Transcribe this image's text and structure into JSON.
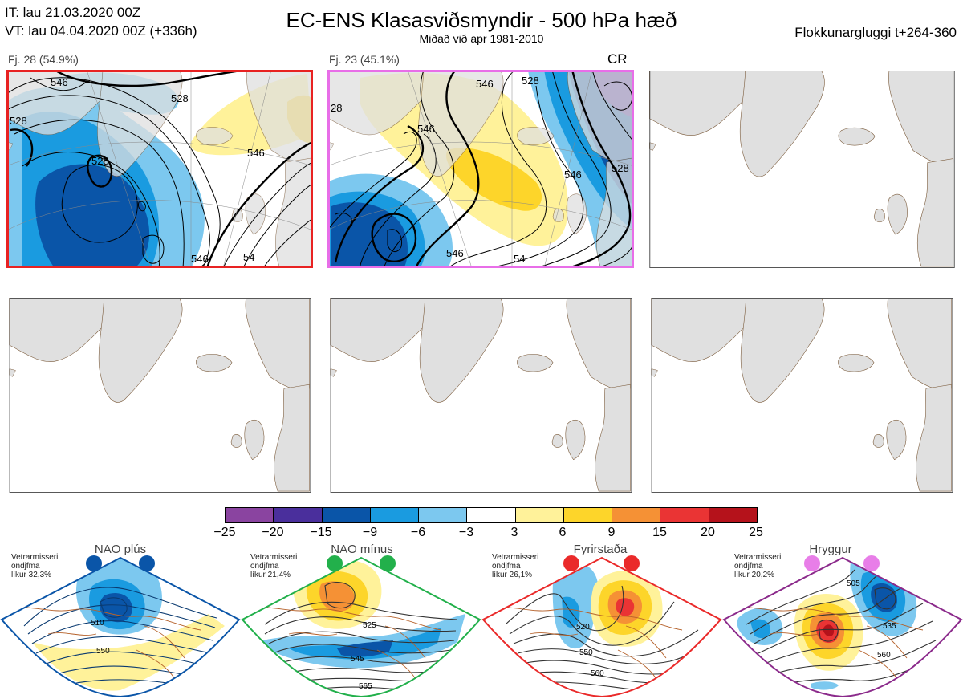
{
  "header": {
    "it_line": "IT: lau 21.03.2020 00Z",
    "vt_line": "VT: lau 04.04.2020 00Z  (+336h)",
    "title": "EC-ENS Klasasviðsmyndir - 500 hPa hæð",
    "subtitle": "Miðað við apr 1981-2010",
    "window": "Flokkunargluggi t+264-360"
  },
  "panels": [
    {
      "label": "Fj. 28 (54.9%)",
      "border_color": "#e82222",
      "contours": [
        "528",
        "528",
        "528",
        "546",
        "546",
        "546",
        "54"
      ]
    },
    {
      "label": "Fj. 23 (45.1%)",
      "border_color": "#e86ee8",
      "regime": "CR",
      "contours": [
        "546",
        "546",
        "528",
        "546",
        "528",
        "546",
        "28",
        "54"
      ]
    },
    {
      "label": ""
    },
    {
      "label": ""
    },
    {
      "label": ""
    },
    {
      "label": ""
    }
  ],
  "colorbar": {
    "ticks": [
      "−25",
      "−20",
      "−15",
      "−9",
      "−6",
      "−3",
      "3",
      "6",
      "9",
      "15",
      "20",
      "25"
    ],
    "colors": [
      "#8a44a0",
      "#4a2f9c",
      "#0a55a8",
      "#1a9be0",
      "#7cc8ef",
      "#ffffff",
      "#fff29a",
      "#fdd52a",
      "#f59135",
      "#ea3434",
      "#b5121b"
    ]
  },
  "regimes": [
    {
      "name": "NAO plús",
      "note": [
        "Vetrarmisseri",
        "ondjfma",
        "líkur 32,3%"
      ],
      "dot_color": "#0a55a8",
      "frame_color": "#0a55a8",
      "contours": [
        "510",
        "550"
      ]
    },
    {
      "name": "NAO mínus",
      "note": [
        "Vetrarmisseri",
        "ondjfma",
        "líkur 21,4%"
      ],
      "dot_color": "#22b04b",
      "frame_color": "#22b04b",
      "contours": [
        "525",
        "545",
        "565"
      ]
    },
    {
      "name": "Fyrirstaða",
      "note": [
        "Vetrarmisseri",
        "ondjfma",
        "líkur 26,1%"
      ],
      "dot_color": "#ea2a2a",
      "frame_color": "#ea2a2a",
      "contours": [
        "520",
        "550",
        "560"
      ]
    },
    {
      "name": "Hryggur",
      "note": [
        "Vetrarmisseri",
        "ondjfma",
        "líkur 20,2%"
      ],
      "dot_color": "#e87ee8",
      "frame_color": "#8b2a8b",
      "contours": [
        "505",
        "535",
        "560"
      ]
    }
  ]
}
